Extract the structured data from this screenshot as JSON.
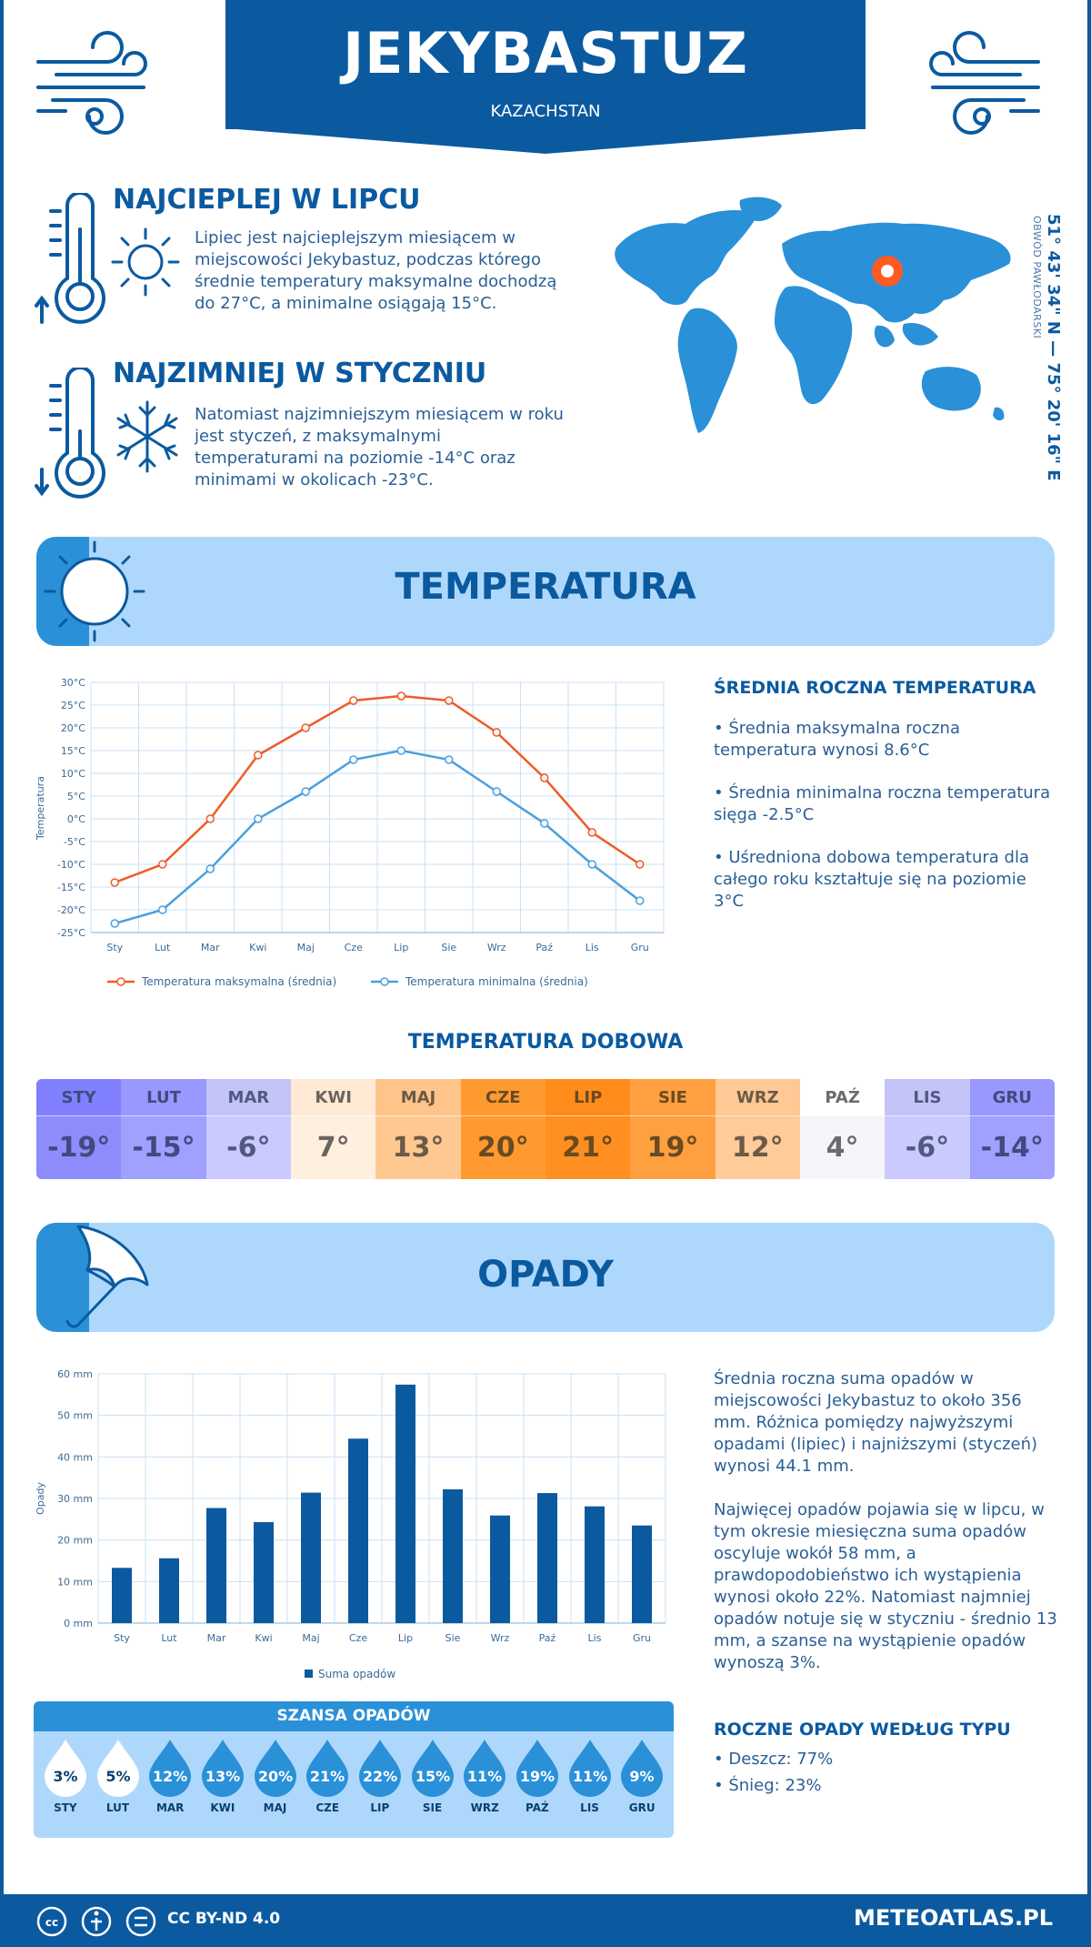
{
  "header": {
    "city": "JEKYBASTUZ",
    "country": "KAZACHSTAN",
    "coordinates": "51° 43' 34\" N — 75° 20' 16\" E",
    "region": "OBWÓD PAWŁODARSKI"
  },
  "facts": {
    "warmest": {
      "title": "NAJCIEPLEJ W LIPCU",
      "text": "Lipiec jest najcieplejszym miesiącem w miejscowości Jekybastuz, podczas którego średnie temperatury maksymalne dochodzą do 27°C, a minimalne osiągają 15°C."
    },
    "coldest": {
      "title": "NAJZIMNIEJ W STYCZNIU",
      "text": "Natomiast najzimniejszym miesiącem w roku jest styczeń, z maksymalnymi temperaturami na poziomie -14°C oraz minimami w okolicach -23°C."
    }
  },
  "temperature": {
    "section_title": "TEMPERATURA",
    "side_title": "ŚREDNIA ROCZNA TEMPERATURA",
    "bullets": [
      "• Średnia maksymalna roczna temperatura wynosi 8.6°C",
      "• Średnia minimalna roczna temperatura sięga -2.5°C",
      "• Uśredniona dobowa temperatura dla całego roku kształtuje się na poziomie 3°C"
    ]
  },
  "daily": {
    "title": "TEMPERATURA DOBOWA",
    "cells": [
      {
        "month": "STY",
        "value": "-19°",
        "head": "#8080ff",
        "body": "#8c8cfc",
        "text": "#404a80"
      },
      {
        "month": "LUT",
        "value": "-15°",
        "head": "#9898ff",
        "body": "#a0a0ff",
        "text": "#404a80"
      },
      {
        "month": "MAR",
        "value": "-6°",
        "head": "#c4c4f8",
        "body": "#cacaff",
        "text": "#505a80"
      },
      {
        "month": "KWI",
        "value": "7°",
        "head": "#ffe9d4",
        "body": "#ffefdf",
        "text": "#6a6460"
      },
      {
        "month": "MAJ",
        "value": "13°",
        "head": "#ffc48a",
        "body": "#ffc890",
        "text": "#6a5a48"
      },
      {
        "month": "CZE",
        "value": "20°",
        "head": "#ff9a30",
        "body": "#ff9a30",
        "text": "#6a4a20"
      },
      {
        "month": "LIP",
        "value": "21°",
        "head": "#ff8c1a",
        "body": "#ff8f20",
        "text": "#6a4a20"
      },
      {
        "month": "SIE",
        "value": "19°",
        "head": "#ffa040",
        "body": "#ffa040",
        "text": "#6a4a20"
      },
      {
        "month": "WRZ",
        "value": "12°",
        "head": "#ffc894",
        "body": "#ffcb98",
        "text": "#6a5a48"
      },
      {
        "month": "PAŹ",
        "value": "4°",
        "head": "#ffffff",
        "body": "#f6f6fa",
        "text": "#6a6a70"
      },
      {
        "month": "LIS",
        "value": "-6°",
        "head": "#c4c4f8",
        "body": "#cacaff",
        "text": "#505a80"
      },
      {
        "month": "GRU",
        "value": "-14°",
        "head": "#9898ff",
        "body": "#a0a0ff",
        "text": "#404a80"
      }
    ]
  },
  "precip": {
    "section_title": "OPADY",
    "para1": "Średnia roczna suma opadów w miejscowości Jekybastuz to około 356 mm. Różnica pomiędzy najwyższymi opadami (lipiec) i najniższymi (styczeń) wynosi 44.1 mm.",
    "para2": "Najwięcej opadów pojawia się w lipcu, w tym okresie miesięczna suma opadów oscyluje wokół 58 mm, a prawdopodobieństwo ich wystąpienia wynosi około 22%. Natomiast najmniej opadów notuje się w styczniu - średnio 13 mm, a szanse na wystąpienie opadów wynoszą 3%.",
    "type_title": "ROCZNE OPADY WEDŁUG TYPU",
    "types": [
      "• Deszcz: 77%",
      "• Śnieg: 23%"
    ],
    "chance_title": "SZANSA OPADÓW",
    "chances": [
      {
        "month": "STY",
        "pct": "3%",
        "fill": "#ffffff",
        "text": "#0b3f70"
      },
      {
        "month": "LUT",
        "pct": "5%",
        "fill": "#ffffff",
        "text": "#0b3f70"
      },
      {
        "month": "MAR",
        "pct": "12%",
        "fill": "#2a90d8",
        "text": "#ffffff"
      },
      {
        "month": "KWI",
        "pct": "13%",
        "fill": "#2a90d8",
        "text": "#ffffff"
      },
      {
        "month": "MAJ",
        "pct": "20%",
        "fill": "#2a90d8",
        "text": "#ffffff"
      },
      {
        "month": "CZE",
        "pct": "21%",
        "fill": "#2a90d8",
        "text": "#ffffff"
      },
      {
        "month": "LIP",
        "pct": "22%",
        "fill": "#2a90d8",
        "text": "#ffffff"
      },
      {
        "month": "SIE",
        "pct": "15%",
        "fill": "#2a90d8",
        "text": "#ffffff"
      },
      {
        "month": "WRZ",
        "pct": "11%",
        "fill": "#2a90d8",
        "text": "#ffffff"
      },
      {
        "month": "PAŹ",
        "pct": "19%",
        "fill": "#2a90d8",
        "text": "#ffffff"
      },
      {
        "month": "LIS",
        "pct": "11%",
        "fill": "#2a90d8",
        "text": "#ffffff"
      },
      {
        "month": "GRU",
        "pct": "9%",
        "fill": "#2a90d8",
        "text": "#ffffff"
      }
    ]
  },
  "footer": {
    "license": "CC BY-ND 4.0",
    "site": "METEOATLAS.PL"
  },
  "chart_data": [
    {
      "type": "line",
      "categories": [
        "Sty",
        "Lut",
        "Mar",
        "Kwi",
        "Maj",
        "Cze",
        "Lip",
        "Sie",
        "Wrz",
        "Paź",
        "Lis",
        "Gru"
      ],
      "ylabel": "Temperatura",
      "ylim": [
        -25,
        30
      ],
      "yticks": [
        "-25°C",
        "-20°C",
        "-15°C",
        "-10°C",
        "-5°C",
        "0°C",
        "5°C",
        "10°C",
        "15°C",
        "20°C",
        "25°C",
        "30°C"
      ],
      "grid": true,
      "legend_position": "bottom",
      "series": [
        {
          "name": "Temperatura maksymalna (średnia)",
          "color": "#f05a28",
          "values": [
            -14,
            -10,
            0,
            14,
            20,
            26,
            27,
            26,
            19,
            9,
            -3,
            -10
          ]
        },
        {
          "name": "Temperatura minimalna (średnia)",
          "color": "#4aa0dc",
          "values": [
            -23,
            -20,
            -11,
            0,
            6,
            13,
            15,
            13,
            6,
            -1,
            -10,
            -18
          ]
        }
      ]
    },
    {
      "type": "bar",
      "categories": [
        "Sty",
        "Lut",
        "Mar",
        "Kwi",
        "Maj",
        "Cze",
        "Lip",
        "Sie",
        "Wrz",
        "Paź",
        "Lis",
        "Gru"
      ],
      "ylabel": "Opady",
      "ylim": [
        0,
        60
      ],
      "yticks": [
        "0 mm",
        "10 mm",
        "20 mm",
        "30 mm",
        "40 mm",
        "50 mm",
        "60 mm"
      ],
      "grid": true,
      "legend_position": "bottom",
      "series": [
        {
          "name": "Suma opadów",
          "color": "#0b5aa0",
          "values": [
            13.3,
            15.6,
            27.7,
            24.3,
            31.4,
            44.4,
            57.4,
            32.2,
            25.9,
            31.3,
            28.1,
            23.5
          ]
        }
      ]
    }
  ]
}
